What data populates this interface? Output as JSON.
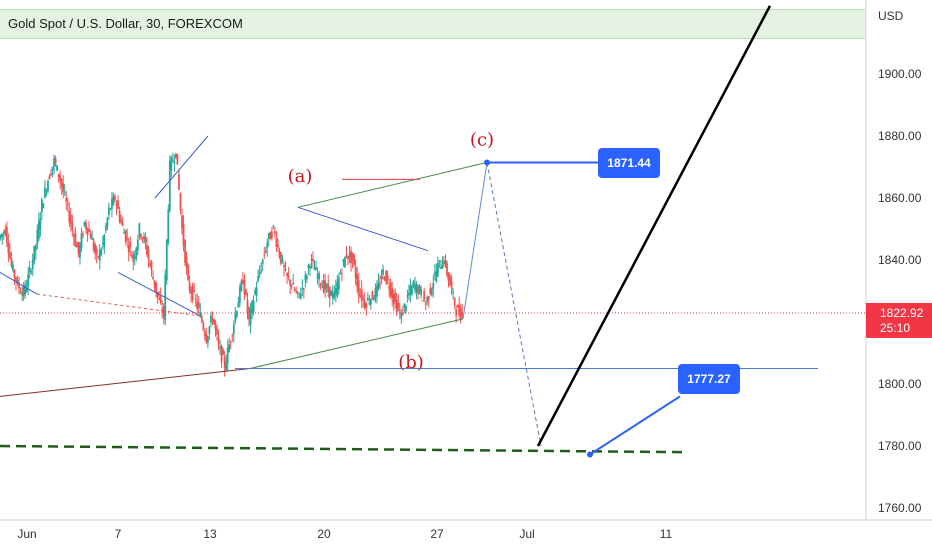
{
  "header": {
    "title": "Gold Spot / U.S. Dollar, 30, FOREXCOM"
  },
  "colors": {
    "up": "#26a69a",
    "down": "#ef5350",
    "accent_blue": "#2962ff",
    "wave_label": "#c4161c",
    "price_badge": "#f23645",
    "target_line": "#1a5e1a"
  },
  "chart_data": {
    "type": "candlestick",
    "symbol": "Gold Spot / U.S. Dollar",
    "interval": "30",
    "exchange": "FOREXCOM",
    "currency": "USD",
    "x_tick_labels": [
      "Jun",
      "7",
      "13",
      "20",
      "27",
      "Jul",
      "11"
    ],
    "y_ticks": [
      1760,
      1780,
      1800,
      1840,
      1860,
      1880,
      1900
    ],
    "y_tick_labels": [
      "1760.00",
      "1780.00",
      "1800.00",
      "1840.00",
      "1860.00",
      "1880.00",
      "1900.00"
    ],
    "ylim": [
      1749,
      1920
    ],
    "grid": false,
    "current_price": {
      "value": 1822.92,
      "label": "1822.92",
      "countdown": "25:10"
    },
    "wave_labels": [
      {
        "text": "(a)",
        "price": 1860
      },
      {
        "text": "(b)",
        "price": 1812
      },
      {
        "text": "(c)",
        "price": 1875
      }
    ],
    "price_callouts": [
      {
        "label": "1871.44",
        "value": 1871.44
      },
      {
        "label": "1777.27",
        "value": 1777.27
      }
    ],
    "close_path": [
      [
        1847,
        1850,
        1838,
        1832,
        1829,
        1836,
        1845,
        1858,
        1866,
        1872,
        1866,
        1858,
        1850,
        1842,
        1852,
        1848,
        1840,
        1845,
        1856,
        1860,
        1852,
        1846,
        1840,
        1850,
        1845,
        1836,
        1828,
        1822,
        1870,
        1875,
        1850,
        1832,
        1828,
        1822,
        1815,
        1822,
        1812,
        1806,
        1815,
        1825,
        1834,
        1820,
        1830,
        1838,
        1846,
        1850,
        1842,
        1835,
        1832,
        1828,
        1832,
        1840,
        1836,
        1832,
        1830,
        1828,
        1836,
        1842,
        1840,
        1830,
        1826,
        1828,
        1830,
        1836,
        1832,
        1826,
        1822,
        1828,
        1832,
        1830,
        1826,
        1832,
        1838,
        1840,
        1832,
        1824,
        1822
      ]
    ]
  }
}
